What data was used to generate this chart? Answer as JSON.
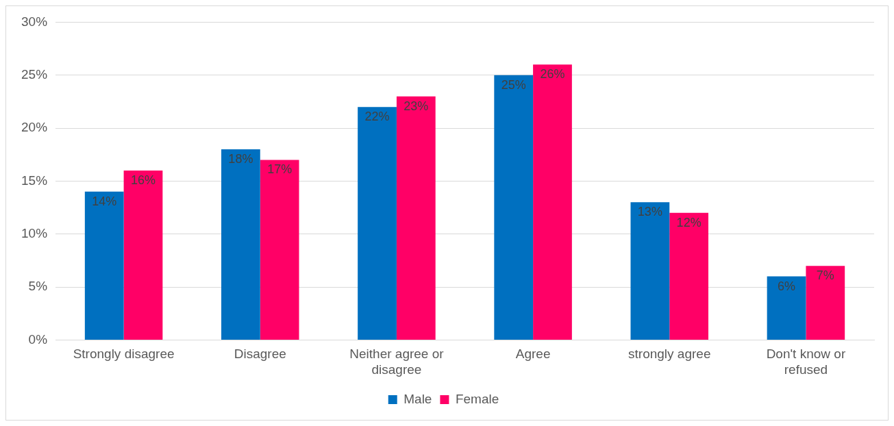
{
  "chart_data": {
    "type": "bar",
    "categories": [
      "Strongly disagree",
      "Disagree",
      "Neither agree or disagree",
      "Agree",
      "strongly agree",
      "Don't know or refused"
    ],
    "series": [
      {
        "name": "Male",
        "color": "#0070c0",
        "values": [
          14,
          18,
          22,
          25,
          13,
          6
        ],
        "value_labels": [
          "14%",
          "18%",
          "22%",
          "25%",
          "13%",
          "6%"
        ]
      },
      {
        "name": "Female",
        "color": "#ff0066",
        "values": [
          16,
          17,
          23,
          26,
          12,
          7
        ],
        "value_labels": [
          "16%",
          "17%",
          "23%",
          "26%",
          "12%",
          "7%"
        ]
      }
    ],
    "ylim": [
      0,
      30
    ],
    "yticks": [
      {
        "value": 0,
        "label": "0%"
      },
      {
        "value": 5,
        "label": "5%"
      },
      {
        "value": 10,
        "label": "10%"
      },
      {
        "value": 15,
        "label": "15%"
      },
      {
        "value": 20,
        "label": "20%"
      },
      {
        "value": 25,
        "label": "25%"
      },
      {
        "value": 30,
        "label": "30%"
      }
    ],
    "grid": "y",
    "legend": "bottom"
  }
}
